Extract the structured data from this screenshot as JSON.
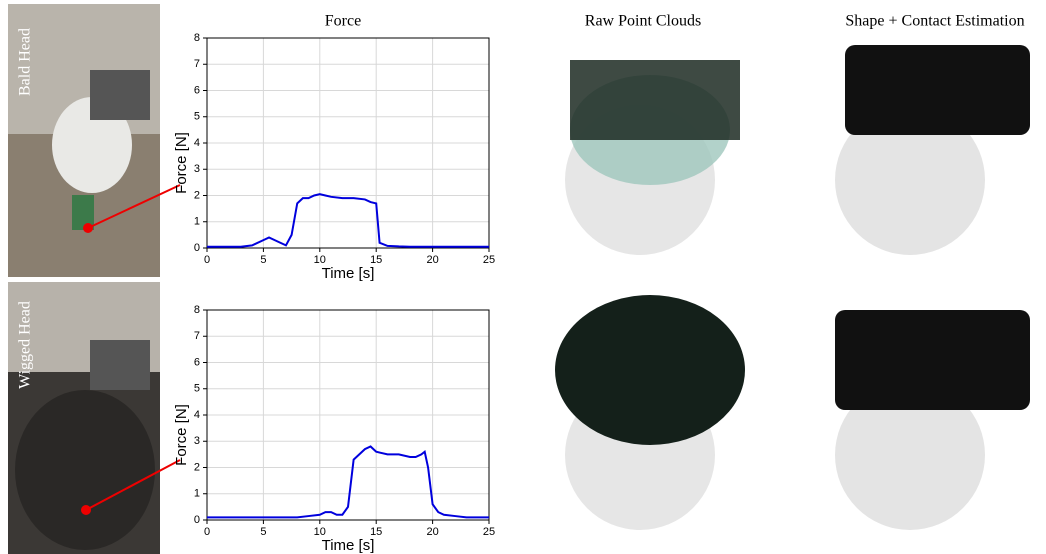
{
  "column_titles": [
    "Force",
    "Raw Point Clouds",
    "Shape + Contact  Estimation"
  ],
  "row_labels": [
    "Bald Head",
    "Wigged Head"
  ],
  "chart_data": [
    {
      "type": "line",
      "xlabel": "Time [s]",
      "ylabel": "Force [N]",
      "x": [
        0,
        1,
        2,
        3,
        4,
        5,
        5.5,
        6,
        6.5,
        7,
        7.5,
        8,
        8.5,
        9,
        9.5,
        10,
        10.5,
        11,
        12,
        13,
        14,
        14.5,
        15,
        15.3,
        16,
        17,
        18,
        19,
        20,
        21,
        22,
        23,
        24,
        25
      ],
      "values": [
        0.05,
        0.05,
        0.05,
        0.05,
        0.1,
        0.3,
        0.4,
        0.3,
        0.2,
        0.1,
        0.5,
        1.7,
        1.9,
        1.9,
        2.0,
        2.05,
        2.0,
        1.95,
        1.9,
        1.9,
        1.85,
        1.75,
        1.7,
        0.2,
        0.08,
        0.06,
        0.05,
        0.05,
        0.05,
        0.05,
        0.05,
        0.05,
        0.05,
        0.05
      ],
      "color": "#0000dd",
      "xlim": [
        0,
        25
      ],
      "ylim": [
        0,
        8
      ],
      "xticks": [
        0,
        5,
        10,
        15,
        20,
        25
      ],
      "yticks": [
        0,
        1,
        2,
        3,
        4,
        5,
        6,
        7,
        8
      ],
      "grid": true
    },
    {
      "type": "line",
      "xlabel": "Time [s]",
      "ylabel": "Force [N]",
      "x": [
        0,
        1,
        2,
        3,
        4,
        5,
        6,
        7,
        8,
        9,
        10,
        10.5,
        11,
        11.5,
        12,
        12.5,
        13,
        13.5,
        14,
        14.5,
        15,
        16,
        17,
        18,
        18.5,
        19,
        19.3,
        19.6,
        20,
        20.5,
        21,
        22,
        23,
        24,
        25
      ],
      "values": [
        0.1,
        0.1,
        0.1,
        0.1,
        0.1,
        0.1,
        0.1,
        0.1,
        0.1,
        0.15,
        0.2,
        0.3,
        0.3,
        0.2,
        0.2,
        0.5,
        2.3,
        2.5,
        2.7,
        2.8,
        2.6,
        2.5,
        2.5,
        2.4,
        2.4,
        2.5,
        2.6,
        2.0,
        0.6,
        0.3,
        0.2,
        0.15,
        0.1,
        0.1,
        0.1
      ],
      "color": "#0000dd",
      "xlim": [
        0,
        25
      ],
      "ylim": [
        0,
        8
      ],
      "xticks": [
        0,
        5,
        10,
        15,
        20,
        25
      ],
      "yticks": [
        0,
        1,
        2,
        3,
        4,
        5,
        6,
        7,
        8
      ],
      "grid": true
    }
  ]
}
